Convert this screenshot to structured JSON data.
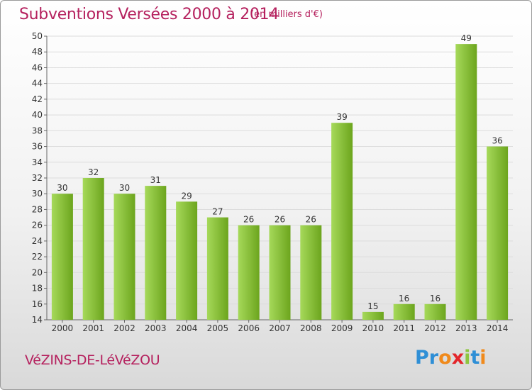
{
  "chart_data": {
    "type": "bar",
    "title": "Subventions Versées 2000 à 2014",
    "subtitle": "(en milliers d'€)",
    "categories": [
      "2000",
      "2001",
      "2002",
      "2003",
      "2004",
      "2005",
      "2006",
      "2007",
      "2008",
      "2009",
      "2010",
      "2011",
      "2012",
      "2013",
      "2014"
    ],
    "values": [
      30,
      32,
      30,
      31,
      29,
      27,
      26,
      26,
      26,
      39,
      15,
      16,
      16,
      49,
      36
    ],
    "ylim": [
      14,
      50
    ],
    "yticks": [
      14,
      16,
      18,
      20,
      22,
      24,
      26,
      28,
      30,
      32,
      34,
      36,
      38,
      40,
      42,
      44,
      46,
      48,
      50
    ],
    "grid": true,
    "colors": {
      "bar_light": "#a6d95a",
      "bar_dark": "#6ca51d",
      "accent": "#b5215e"
    }
  },
  "footer": {
    "commune": "VéZINS-DE-LéVéZOU",
    "logo_letters": [
      "P",
      "r",
      "o",
      "x",
      "i",
      "t",
      "i"
    ],
    "logo_colors": [
      "#2f8fd6",
      "#2f8fd6",
      "#f08a1c",
      "#e3262b",
      "#8dc63f",
      "#2f8fd6",
      "#f08a1c"
    ]
  }
}
